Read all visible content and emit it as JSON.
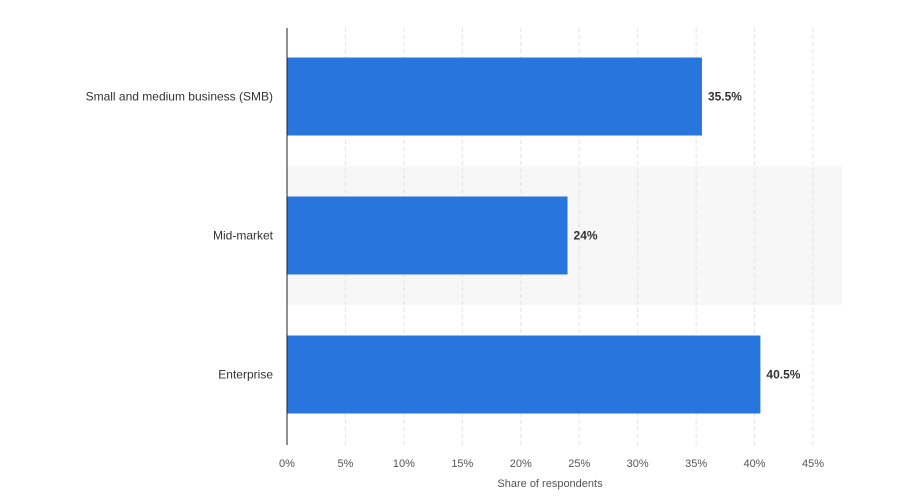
{
  "chart_data": {
    "type": "bar",
    "orientation": "horizontal",
    "categories": [
      "Small and medium business (SMB)",
      "Mid-market",
      "Enterprise"
    ],
    "values": [
      35.5,
      24,
      40.5
    ],
    "data_labels": [
      "35.5%",
      "24%",
      "40.5%"
    ],
    "xlabel": "Share of respondents",
    "ylabel": "",
    "xlim": [
      0,
      45
    ],
    "x_ticks": [
      0,
      5,
      10,
      15,
      20,
      25,
      30,
      35,
      40,
      45
    ],
    "x_tick_labels": [
      "0%",
      "5%",
      "10%",
      "15%",
      "20%",
      "25%",
      "30%",
      "35%",
      "40%",
      "45%"
    ],
    "grid": "vertical dashed",
    "legend": "none",
    "colors": {
      "bar": "#2876dd",
      "grid": "#e3e3e3",
      "axis": "#222222",
      "band": "#f7f7f7"
    }
  }
}
